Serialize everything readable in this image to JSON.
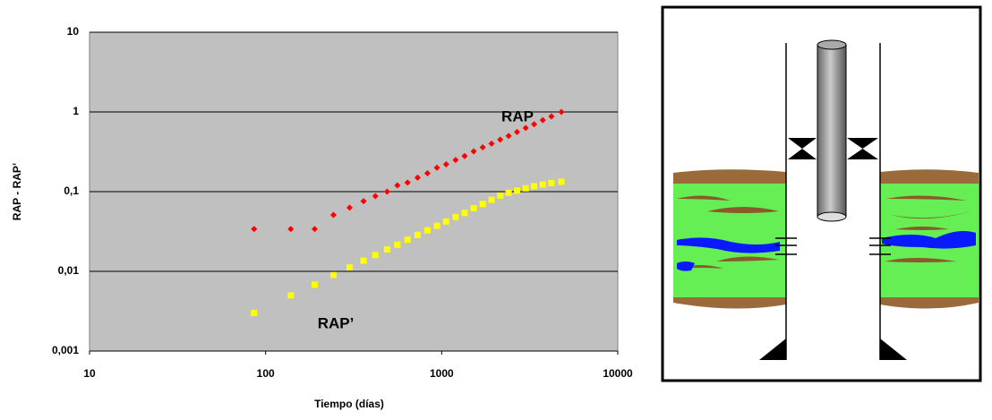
{
  "chart_data": {
    "type": "scatter",
    "x_label": "Tiempo (días)",
    "y_label": "RAP - RAP’",
    "xscale": "log",
    "yscale": "log",
    "xlim": [
      10,
      10000
    ],
    "ylim": [
      0.001,
      10
    ],
    "xticks": [
      10,
      100,
      1000,
      10000
    ],
    "yticks": [
      {
        "value": 0.001,
        "label": "0,001"
      },
      {
        "value": 0.01,
        "label": "0,01"
      },
      {
        "value": 0.1,
        "label": "0,1"
      },
      1,
      10
    ],
    "grid": true,
    "background": "#c0c0c0",
    "annotations": [
      "RAP",
      "RAP’"
    ],
    "series": [
      {
        "name": "RAP",
        "color": "#ff0000",
        "marker": "diamond",
        "x": [
          86,
          139,
          190,
          243,
          300,
          360,
          420,
          490,
          560,
          640,
          730,
          830,
          940,
          1060,
          1200,
          1350,
          1520,
          1710,
          1920,
          2150,
          2400,
          2680,
          3000,
          3350,
          3750,
          4200,
          4786
        ],
        "values": [
          0.034,
          0.034,
          0.034,
          0.051,
          0.063,
          0.076,
          0.088,
          0.1,
          0.12,
          0.13,
          0.15,
          0.17,
          0.2,
          0.22,
          0.25,
          0.28,
          0.32,
          0.36,
          0.4,
          0.45,
          0.5,
          0.56,
          0.63,
          0.7,
          0.79,
          0.88,
          1.0
        ]
      },
      {
        "name": "RAP’",
        "color": "#ffff00",
        "marker": "square",
        "x": [
          86,
          139,
          190,
          243,
          300,
          360,
          420,
          490,
          560,
          640,
          730,
          830,
          940,
          1060,
          1200,
          1350,
          1520,
          1710,
          1920,
          2150,
          2400,
          2680,
          3000,
          3350,
          3750,
          4200,
          4786
        ],
        "values": [
          0.003,
          0.005,
          0.0068,
          0.009,
          0.0112,
          0.0136,
          0.016,
          0.0188,
          0.0216,
          0.0249,
          0.0286,
          0.0327,
          0.0373,
          0.0422,
          0.048,
          0.054,
          0.062,
          0.07,
          0.079,
          0.089,
          0.097,
          0.103,
          0.11,
          0.117,
          0.123,
          0.128,
          0.133
        ]
      }
    ]
  }
}
